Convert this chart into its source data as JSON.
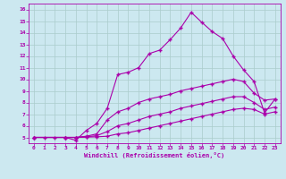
{
  "xlabel": "Windchill (Refroidissement éolien,°C)",
  "background_color": "#cce8f0",
  "grid_color": "#aacccc",
  "line_color": "#aa00aa",
  "xlim": [
    -0.5,
    23.5
  ],
  "ylim": [
    4.5,
    16.5
  ],
  "xticks": [
    0,
    1,
    2,
    3,
    4,
    5,
    6,
    7,
    8,
    9,
    10,
    11,
    12,
    13,
    14,
    15,
    16,
    17,
    18,
    19,
    20,
    21,
    22,
    23
  ],
  "yticks": [
    5,
    6,
    7,
    8,
    9,
    10,
    11,
    12,
    13,
    14,
    15,
    16
  ],
  "line1_x": [
    0,
    1,
    2,
    3,
    4,
    5,
    6,
    7,
    8,
    9,
    10,
    11,
    12,
    13,
    14,
    15,
    16,
    17,
    18,
    19,
    20,
    21,
    22,
    23
  ],
  "line1_y": [
    5.0,
    5.0,
    5.0,
    5.0,
    4.75,
    5.6,
    6.2,
    7.5,
    10.4,
    10.6,
    11.0,
    12.2,
    12.5,
    13.4,
    14.4,
    15.75,
    14.9,
    14.1,
    13.5,
    12.0,
    10.8,
    9.8,
    7.1,
    8.3
  ],
  "line2_x": [
    0,
    3,
    4,
    5,
    6,
    7,
    8,
    9,
    10,
    11,
    12,
    13,
    14,
    15,
    16,
    17,
    18,
    19,
    20,
    21,
    22,
    23
  ],
  "line2_y": [
    5.0,
    5.0,
    5.0,
    5.1,
    5.3,
    6.5,
    7.2,
    7.5,
    8.0,
    8.3,
    8.5,
    8.7,
    9.0,
    9.2,
    9.4,
    9.6,
    9.8,
    10.0,
    9.8,
    8.8,
    8.2,
    8.3
  ],
  "line3_x": [
    0,
    3,
    4,
    5,
    6,
    7,
    8,
    9,
    10,
    11,
    12,
    13,
    14,
    15,
    16,
    17,
    18,
    19,
    20,
    21,
    22,
    23
  ],
  "line3_y": [
    5.0,
    5.0,
    5.0,
    5.05,
    5.15,
    5.5,
    6.0,
    6.2,
    6.5,
    6.8,
    7.0,
    7.2,
    7.5,
    7.7,
    7.9,
    8.1,
    8.3,
    8.5,
    8.5,
    8.0,
    7.4,
    7.6
  ],
  "line4_x": [
    0,
    3,
    4,
    5,
    6,
    7,
    8,
    9,
    10,
    11,
    12,
    13,
    14,
    15,
    16,
    17,
    18,
    19,
    20,
    21,
    22,
    23
  ],
  "line4_y": [
    5.0,
    5.0,
    5.0,
    5.02,
    5.05,
    5.1,
    5.3,
    5.4,
    5.6,
    5.8,
    6.0,
    6.2,
    6.4,
    6.6,
    6.8,
    7.0,
    7.2,
    7.4,
    7.5,
    7.4,
    7.0,
    7.2
  ],
  "marker": "+",
  "markersize": 3,
  "linewidth": 0.8
}
